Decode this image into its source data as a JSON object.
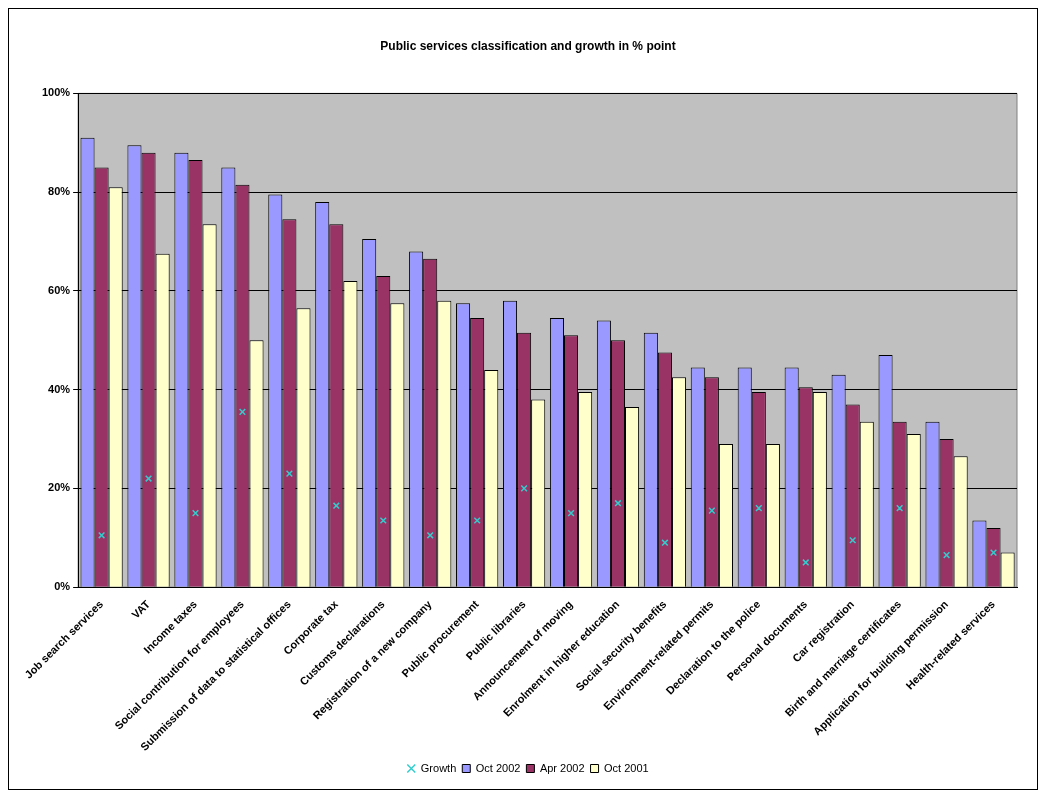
{
  "chart_data": {
    "type": "bar",
    "title": "Public services classification and growth in % point",
    "categories": [
      "Job search services",
      "VAT",
      "Income taxes",
      "Social contribution for employees",
      "Submission of data to statistical offices",
      "Corporate tax",
      "Customs declarations",
      "Registration of a new company",
      "Public procurement",
      "Public libraries",
      "Announcement of moving",
      "Enrolment in higher education",
      "Social security benefits",
      "Environment-related permits",
      "Declaration to the police",
      "Personal documents",
      "Car registration",
      "Birth and marriage certificates",
      "Application for building permission",
      "Health-related services"
    ],
    "series": [
      {
        "name": "Oct 2002",
        "color": "#9999ff",
        "values": [
          91,
          89.5,
          88,
          85,
          79.5,
          78,
          70.5,
          68,
          57.5,
          58,
          54.5,
          54,
          51.5,
          44.5,
          44.5,
          44.5,
          43,
          47,
          33.5,
          13.5
        ]
      },
      {
        "name": "Apr 2002",
        "color": "#993366",
        "values": [
          85,
          88,
          86.5,
          81.5,
          74.5,
          73.5,
          63,
          66.5,
          54.5,
          51.5,
          51,
          50,
          47.5,
          42.5,
          39.5,
          40.5,
          37,
          33.5,
          30,
          12
        ]
      },
      {
        "name": "Oct 2001",
        "color": "#ffffcc",
        "values": [
          81,
          67.5,
          73.5,
          50,
          56.5,
          62,
          57.5,
          58,
          44,
          38,
          39.5,
          36.5,
          42.5,
          29,
          29,
          39.5,
          33.5,
          31,
          26.5,
          7
        ]
      },
      {
        "name": "Growth",
        "type": "scatter",
        "marker": "cross",
        "color": "#33cccc",
        "x": [
          "Job search services",
          "VAT",
          "Income taxes",
          "Social contribution for employees",
          "Submission of data to statistical offices",
          "Corporate tax",
          "Customs declarations",
          "Registration of a new company",
          "Public procurement",
          "Public libraries",
          "Announcement of moving",
          "Enrolment in higher education",
          "Social security benefits",
          "Environment-related permits",
          "Declaration to the police",
          "Personal documents",
          "Car registration",
          "Birth and marriage certificates",
          "Application for building permission",
          "Health-related services"
        ],
        "values": [
          10.5,
          22,
          15,
          35.5,
          23,
          16.5,
          13.5,
          10.5,
          13.5,
          20,
          15,
          17,
          9,
          15.5,
          16,
          5,
          9.5,
          16,
          6.5,
          7
        ]
      }
    ],
    "ylim": [
      0,
      100
    ],
    "yticks": [
      {
        "value": 0,
        "label": "0%"
      },
      {
        "value": 20,
        "label": "20%"
      },
      {
        "value": 40,
        "label": "40%"
      },
      {
        "value": 60,
        "label": "60%"
      },
      {
        "value": 80,
        "label": "80%"
      },
      {
        "value": 100,
        "label": "100%"
      }
    ],
    "grid": "y",
    "legend": "bottom"
  }
}
